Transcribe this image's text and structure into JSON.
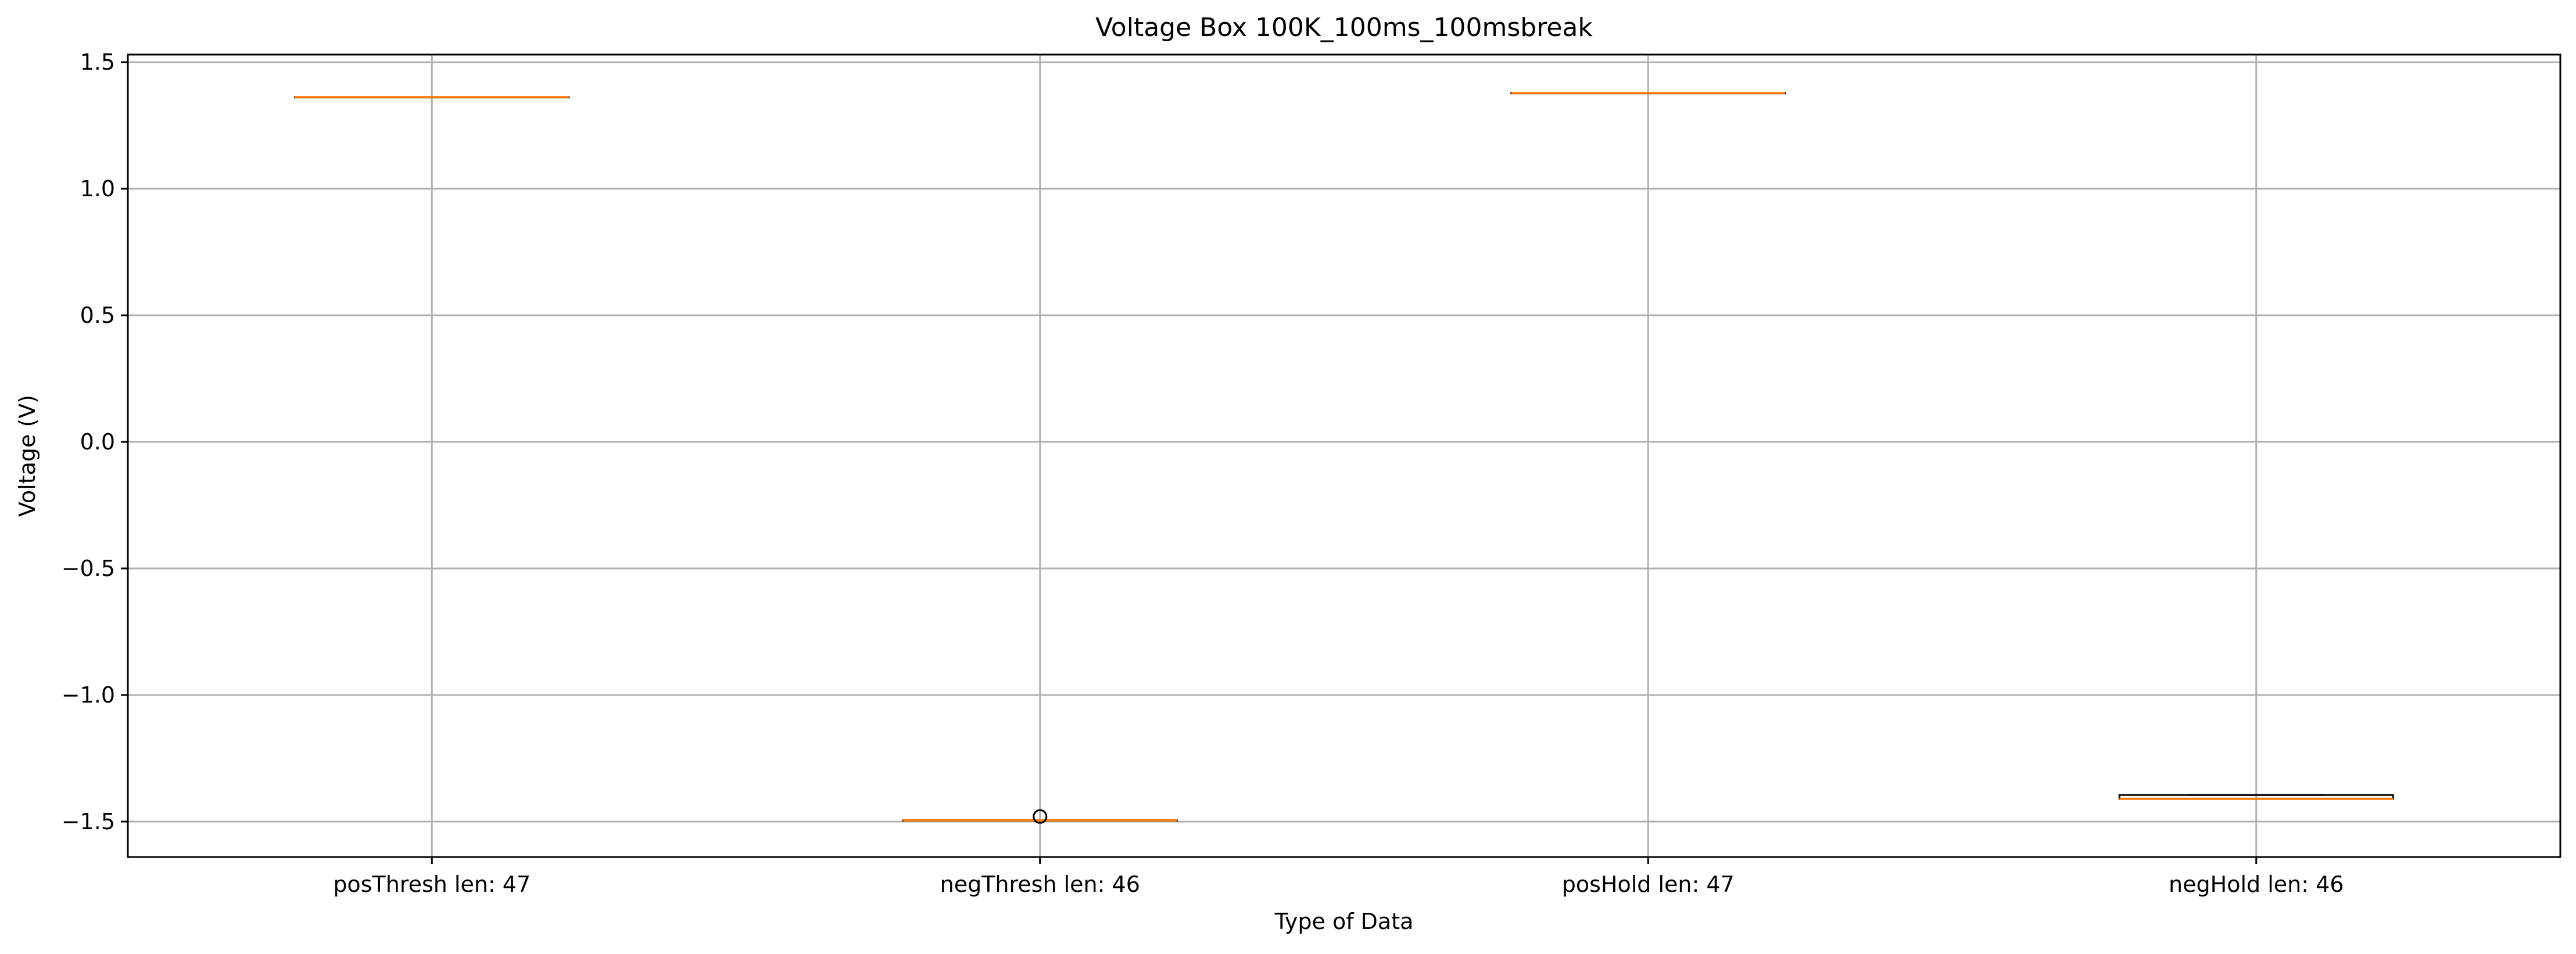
{
  "chart_data": {
    "type": "box",
    "title": "Voltage Box 100K_100ms_100msbreak",
    "xlabel": "Type of Data",
    "ylabel": "Voltage (V)",
    "ylim": [
      -1.64,
      1.53
    ],
    "yticks": [
      1.5,
      1.0,
      0.5,
      0.0,
      -0.5,
      -1.0,
      -1.5
    ],
    "ytick_labels": [
      "1.5",
      "1.0",
      "0.5",
      "0.0",
      "−0.5",
      "−1.0",
      "−1.5"
    ],
    "grid": true,
    "categories": [
      "posThresh len: 47",
      "negThresh len: 46",
      "posHold len: 47",
      "negHold len: 46"
    ],
    "boxes": [
      {
        "min": 1.362,
        "q1": 1.362,
        "median": 1.362,
        "q3": 1.362,
        "max": 1.362,
        "outliers": []
      },
      {
        "min": -1.495,
        "q1": -1.495,
        "median": -1.495,
        "q3": -1.495,
        "max": -1.495,
        "outliers": [
          -1.48
        ]
      },
      {
        "min": 1.378,
        "q1": 1.378,
        "median": 1.378,
        "q3": 1.378,
        "max": 1.378,
        "outliers": []
      },
      {
        "min": -1.41,
        "q1": -1.41,
        "median": -1.41,
        "q3": -1.395,
        "max": -1.395,
        "outliers": []
      }
    ],
    "colors": {
      "median": "#ff7f0e",
      "box": "#000000",
      "grid": "#b0b0b0"
    }
  }
}
